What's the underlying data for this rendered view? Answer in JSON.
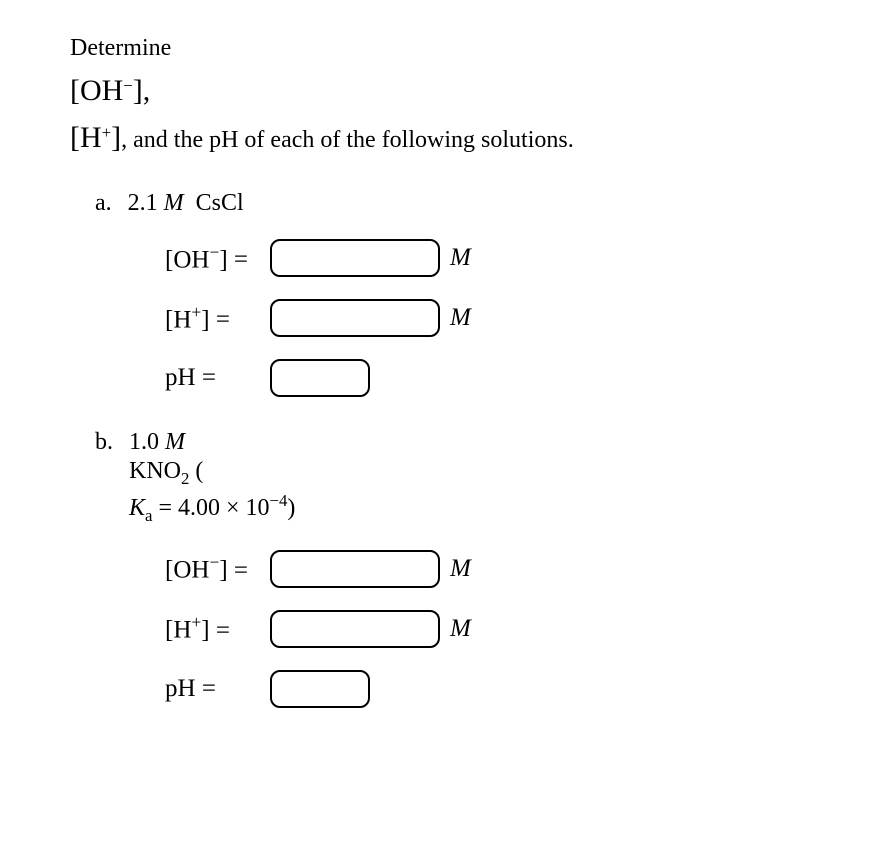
{
  "question": {
    "line1": "Determine",
    "line2_prefix": "[OH",
    "line2_sup": "−",
    "line2_suffix": "],",
    "line3_prefix": "[H",
    "line3_sup": "+",
    "line3_mid": "]",
    "line3_rest": ", and the pH of each of the following solutions."
  },
  "parts": {
    "a": {
      "letter": "a.",
      "conc_value": "2.1",
      "conc_unit": "M",
      "compound": "CsCl",
      "rows": [
        {
          "label_prefix": "[OH",
          "label_sup": "−",
          "label_suffix": "]",
          "equals": "=",
          "input_width": "wide",
          "unit": "M"
        },
        {
          "label_prefix": "[H",
          "label_sup": "+",
          "label_suffix": "]",
          "equals": "=",
          "input_width": "wide",
          "unit": "M"
        },
        {
          "label_plain": "pH",
          "equals": "=",
          "input_width": "narrow",
          "unit": ""
        }
      ]
    },
    "b": {
      "letter": "b.",
      "conc_value": "1.0",
      "conc_unit": "M",
      "compound_prefix": "KNO",
      "compound_sub": "2",
      "compound_open": " (",
      "ka_label": "K",
      "ka_sub": "a",
      "ka_equals": " = ",
      "ka_value": "4.00 × 10",
      "ka_exp": "−4",
      "ka_close": ")",
      "rows": [
        {
          "label_prefix": "[OH",
          "label_sup": "−",
          "label_suffix": "]",
          "equals": "=",
          "input_width": "wide",
          "unit": "M"
        },
        {
          "label_prefix": "[H",
          "label_sup": "+",
          "label_suffix": "]",
          "equals": "=",
          "input_width": "wide",
          "unit": "M"
        },
        {
          "label_plain": "pH",
          "equals": "=",
          "input_width": "narrow",
          "unit": ""
        }
      ]
    }
  }
}
